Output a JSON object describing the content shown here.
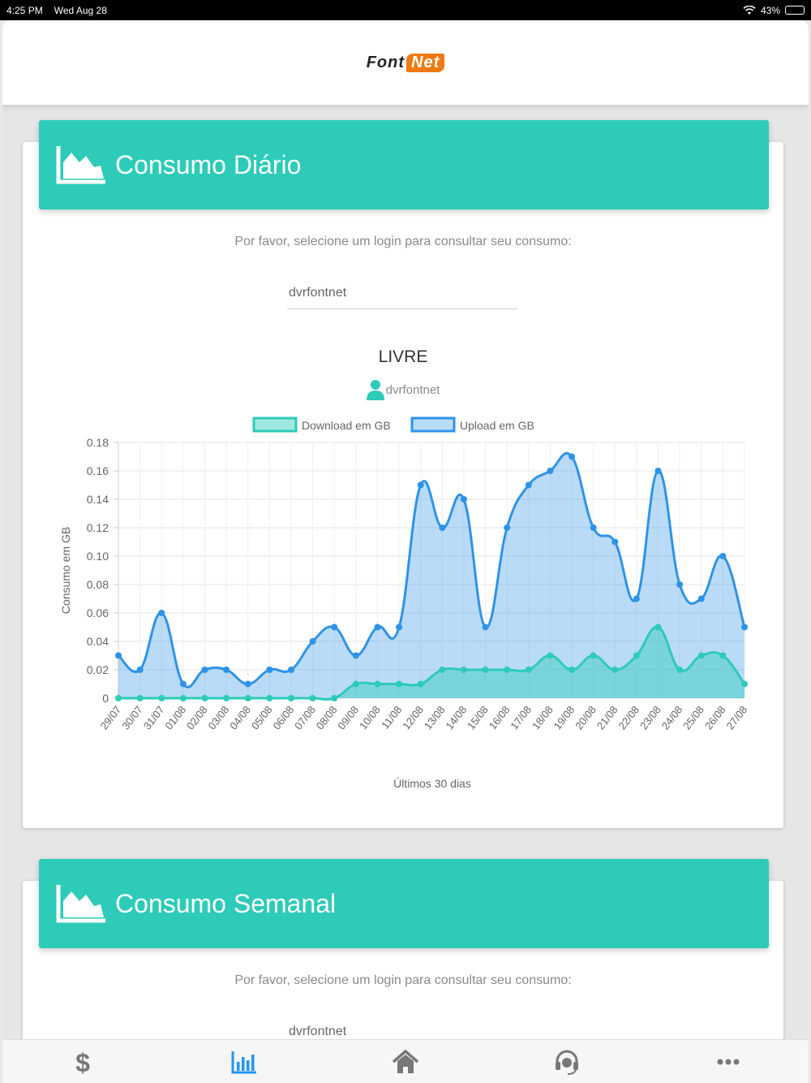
{
  "status_bar": {
    "time": "4:25 PM",
    "date": "Wed Aug 28",
    "battery": "43%",
    "battery_level": 0.43
  },
  "header": {
    "logo_part1": "Font",
    "logo_part2": "Net"
  },
  "daily": {
    "title": "Consumo Diário",
    "prompt": "Por favor, selecione um login para consultar seu consumo:",
    "login_value": "dvrfontnet",
    "plan": "LIVRE",
    "user": "dvrfontnet"
  },
  "weekly": {
    "title": "Consumo Semanal",
    "prompt": "Por favor, selecione um login para consultar seu consumo:",
    "login_value": "dvrfontnet"
  },
  "tabs": [
    {
      "icon": "dollar-icon",
      "active": false
    },
    {
      "icon": "bar-chart-icon",
      "active": true
    },
    {
      "icon": "home-icon",
      "active": false
    },
    {
      "icon": "headset-icon",
      "active": false
    },
    {
      "icon": "more-icon",
      "active": false
    }
  ],
  "colors": {
    "accent": "#2dcbb8",
    "upload": "#2e93e8",
    "download": "#2dcbb8"
  },
  "chart_data": {
    "type": "area",
    "ylabel": "Consumo em GB",
    "xlabel": "Últimos 30 dias",
    "ylim": [
      0,
      0.18
    ],
    "yticks": [
      "0",
      "0.02",
      "0.04",
      "0.06",
      "0.08",
      "0.10",
      "0.12",
      "0.14",
      "0.16",
      "0.18"
    ],
    "legend_position": "top",
    "grid": true,
    "categories": [
      "29/07",
      "30/07",
      "31/07",
      "01/08",
      "02/08",
      "03/08",
      "04/08",
      "05/08",
      "06/08",
      "07/08",
      "08/08",
      "09/08",
      "10/08",
      "11/08",
      "12/08",
      "13/08",
      "14/08",
      "15/08",
      "16/08",
      "17/08",
      "18/08",
      "19/08",
      "20/08",
      "21/08",
      "22/08",
      "23/08",
      "24/08",
      "25/08",
      "26/08",
      "27/08"
    ],
    "series": [
      {
        "name": "Download em GB",
        "values": [
          0,
          0,
          0,
          0,
          0,
          0,
          0,
          0,
          0,
          0,
          0,
          0.01,
          0.01,
          0.01,
          0.01,
          0.02,
          0.02,
          0.02,
          0.02,
          0.02,
          0.03,
          0.02,
          0.03,
          0.02,
          0.03,
          0.05,
          0.02,
          0.03,
          0.03,
          0.01
        ]
      },
      {
        "name": "Upload em GB",
        "values": [
          0.03,
          0.02,
          0.06,
          0.01,
          0.02,
          0.02,
          0.01,
          0.02,
          0.02,
          0.04,
          0.05,
          0.03,
          0.05,
          0.05,
          0.15,
          0.12,
          0.14,
          0.05,
          0.12,
          0.15,
          0.16,
          0.17,
          0.12,
          0.11,
          0.07,
          0.16,
          0.08,
          0.07,
          0.1,
          0.05
        ]
      }
    ]
  }
}
